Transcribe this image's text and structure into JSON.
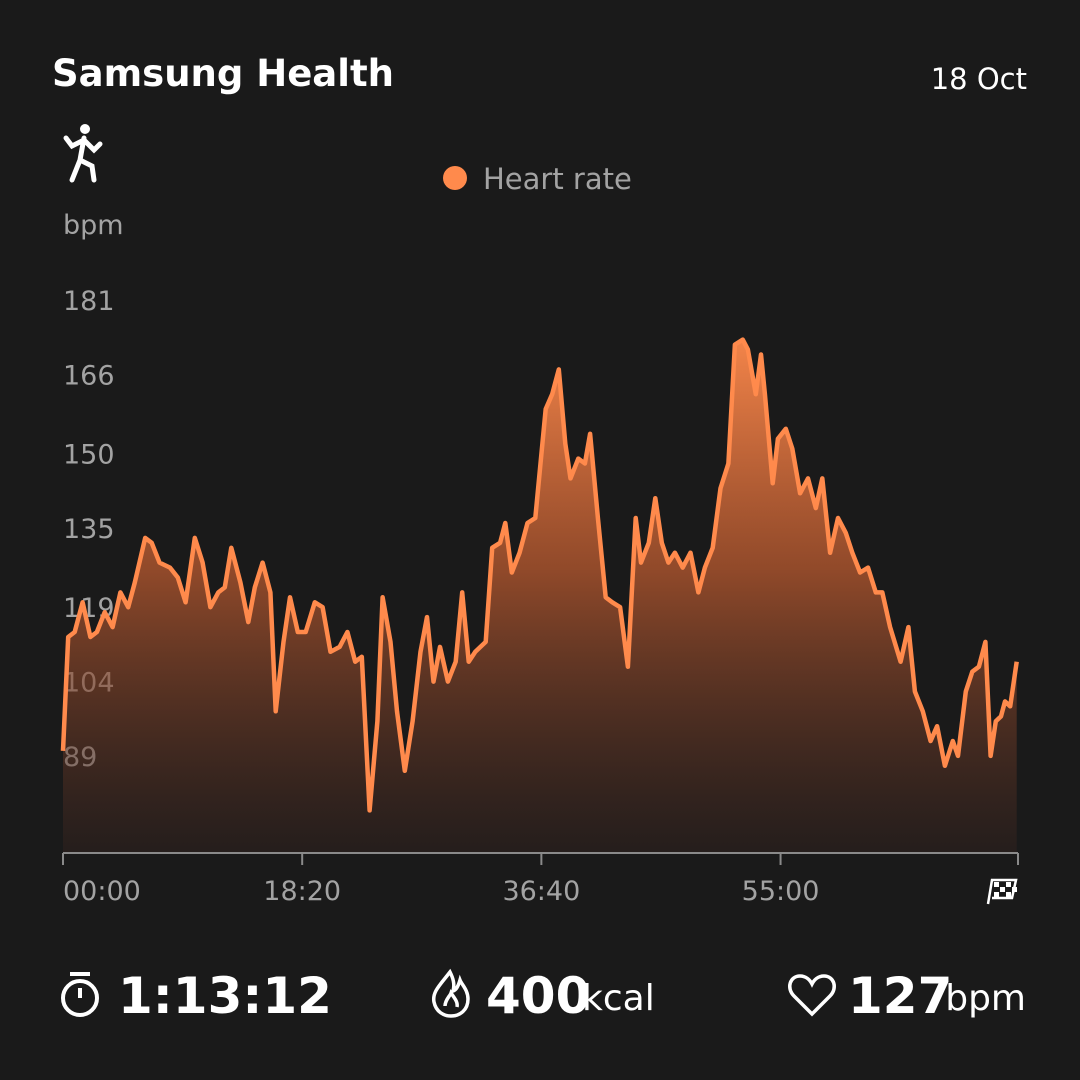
{
  "header": {
    "title": "Samsung Health",
    "date": "18 Oct"
  },
  "chart_data": {
    "type": "area-line",
    "y_label": "bpm",
    "xlim": [
      0,
      73.2
    ],
    "xticks": [
      {
        "value": 0,
        "label": "00:00"
      },
      {
        "value": 18.333,
        "label": "18:20"
      },
      {
        "value": 36.667,
        "label": "36:40"
      },
      {
        "value": 55,
        "label": "55:00"
      }
    ],
    "ylim": [
      69,
      181
    ],
    "yticks": [
      181,
      166,
      150,
      135,
      119,
      104,
      89
    ],
    "x": [
      0,
      0.4,
      0.9,
      1.5,
      2.1,
      2.6,
      3.2,
      3.8,
      4.4,
      5.0,
      5.5,
      6.3,
      6.8,
      7.4,
      8.2,
      8.8,
      9.4,
      10.1,
      10.7,
      11.3,
      11.9,
      12.4,
      12.9,
      13.6,
      14.2,
      14.7,
      15.3,
      15.9,
      16.3,
      16.9,
      17.4,
      18.0,
      18.6,
      19.3,
      19.9,
      20.5,
      21.2,
      21.8,
      22.4,
      22.9,
      23.5,
      24.1,
      24.5,
      25.1,
      25.6,
      26.2,
      26.8,
      27.4,
      27.9,
      28.4,
      28.9,
      29.5,
      30.1,
      30.6,
      31.1,
      31.6,
      32.4,
      32.9,
      33.5,
      33.9,
      34.4,
      35.0,
      35.6,
      36.2,
      37.0,
      37.5,
      38.0,
      38.5,
      38.9,
      39.5,
      40.0,
      40.4,
      41.0,
      41.6,
      42.1,
      42.7,
      43.3,
      43.9,
      44.3,
      44.9,
      45.4,
      45.9,
      46.4,
      46.9,
      47.5,
      48.1,
      48.7,
      49.2,
      49.8,
      50.4,
      51.0,
      51.5,
      52.1,
      52.5,
      53.1,
      53.5,
      53.8,
      54.4,
      54.8,
      55.4,
      55.9,
      56.5,
      57.1,
      57.7,
      58.2,
      58.8,
      59.4,
      60.0,
      60.5,
      61.1,
      61.7,
      62.3,
      62.8,
      63.4,
      64.2,
      64.8,
      65.3,
      65.9,
      66.5,
      67.0,
      67.6,
      68.2,
      68.6,
      69.2,
      69.7,
      70.2,
      70.7,
      71.1,
      71.5,
      71.9,
      72.2,
      72.6,
      73.1
    ],
    "series": [
      {
        "name": "Heart rate",
        "color": "#ff8a4c",
        "values": [
          90,
          113,
          114,
          120,
          113,
          114,
          118,
          115,
          122,
          119,
          124,
          133,
          132,
          128,
          127,
          125,
          120,
          133,
          128,
          119,
          122,
          123,
          131,
          124,
          116,
          123,
          128,
          122,
          98,
          112,
          121,
          114,
          114,
          120,
          119,
          110,
          111,
          114,
          108,
          109,
          78,
          96,
          121,
          112,
          98,
          86,
          96,
          110,
          117,
          104,
          111,
          104,
          108,
          122,
          108,
          110,
          112,
          131,
          132,
          136,
          126,
          130,
          136,
          137,
          159,
          162,
          167,
          152,
          145,
          149,
          148,
          154,
          137,
          121,
          120,
          119,
          107,
          137,
          128,
          132,
          141,
          132,
          128,
          130,
          127,
          130,
          122,
          127,
          131,
          143,
          148,
          172,
          173,
          171,
          162,
          170,
          162,
          144,
          153,
          155,
          151,
          142,
          145,
          139,
          145,
          130,
          137,
          134,
          130,
          126,
          127,
          122,
          122,
          115,
          108,
          115,
          102,
          98,
          92,
          95,
          87,
          92,
          89,
          102,
          106,
          107,
          112,
          89,
          96,
          97,
          100,
          99,
          108
        ]
      }
    ]
  },
  "stats": {
    "duration": "1:13:12",
    "calories": 400,
    "calories_unit": "kcal",
    "heart_rate": 127,
    "heart_rate_unit": "bpm"
  }
}
